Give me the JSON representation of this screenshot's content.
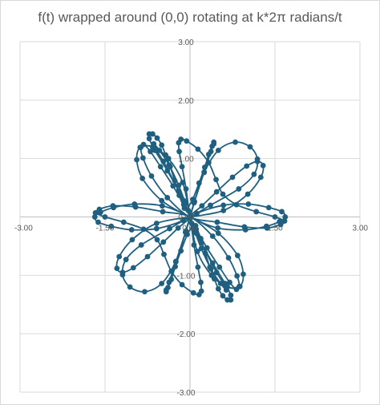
{
  "chart_data": {
    "type": "scatter",
    "title": "f(t) wrapped around (0,0) rotating at k*2π radians/t",
    "xlabel": "",
    "ylabel": "",
    "xlim": [
      -3,
      3
    ],
    "ylim": [
      -3,
      3
    ],
    "x_ticks": [
      -3,
      -1.5,
      0,
      1.5,
      3
    ],
    "y_ticks": [
      -3,
      -2,
      -1,
      0,
      1,
      2,
      3
    ],
    "x_tick_labels": [
      "-3.00",
      "-1.50",
      "0.00",
      "1.50",
      "3.00"
    ],
    "y_tick_labels": [
      "-3.00",
      "-2.00",
      "-1.00",
      "0.00",
      "1.00",
      "2.00",
      "3.00"
    ],
    "grid": true,
    "smooth_line": true,
    "legend": "none",
    "series": [
      {
        "color": "#1f5f7f",
        "points": [
          [
            0.0,
            0.0
          ],
          [
            0.59,
            0.11
          ],
          [
            1.02,
            0.39
          ],
          [
            1.25,
            0.68
          ],
          [
            1.29,
            0.88
          ],
          [
            1.19,
            0.95
          ],
          [
            1.0,
            0.87
          ],
          [
            0.75,
            0.68
          ],
          [
            0.47,
            0.43
          ],
          [
            0.21,
            0.19
          ],
          [
            0.0,
            0.0
          ],
          [
            0.1,
            -0.15
          ],
          [
            0.19,
            -0.37
          ],
          [
            0.27,
            -0.62
          ],
          [
            0.35,
            -0.86
          ],
          [
            0.43,
            -1.06
          ],
          [
            0.5,
            -1.23
          ],
          [
            0.58,
            -1.35
          ],
          [
            0.66,
            -1.42
          ],
          [
            0.72,
            -1.42
          ],
          [
            0.72,
            -1.34
          ],
          [
            0.62,
            -1.14
          ],
          [
            0.4,
            -0.79
          ],
          [
            0.11,
            -0.28
          ],
          [
            -0.03,
            0.11
          ],
          [
            0.05,
            0.3
          ],
          [
            0.16,
            0.58
          ],
          [
            0.26,
            0.85
          ],
          [
            0.33,
            1.07
          ],
          [
            0.39,
            1.21
          ],
          [
            0.42,
            1.28
          ],
          [
            0.42,
            1.25
          ],
          [
            0.37,
            1.12
          ],
          [
            0.25,
            0.77
          ],
          [
            0.08,
            0.26
          ],
          [
            -0.07,
            -0.24
          ],
          [
            -0.25,
            -0.76
          ],
          [
            -0.5,
            -1.14
          ],
          [
            -0.8,
            -1.28
          ],
          [
            -1.06,
            -1.2
          ],
          [
            -1.19,
            -0.99
          ],
          [
            -1.13,
            -0.73
          ],
          [
            -0.86,
            -0.48
          ],
          [
            -0.36,
            -0.2
          ],
          [
            0.12,
            0.06
          ],
          [
            0.59,
            0.2
          ],
          [
            1.03,
            0.22
          ],
          [
            1.39,
            0.16
          ],
          [
            1.62,
            0.09
          ],
          [
            1.68,
            0.0
          ],
          [
            1.58,
            -0.08
          ],
          [
            1.35,
            -0.16
          ],
          [
            0.98,
            -0.22
          ],
          [
            0.49,
            -0.19
          ],
          [
            0.0,
            0.0
          ],
          [
            -0.5,
            0.28
          ],
          [
            -0.84,
            0.66
          ],
          [
            -0.94,
            0.98
          ],
          [
            -0.88,
            1.19
          ],
          [
            -0.66,
            1.2
          ],
          [
            -0.38,
            1.0
          ],
          [
            -0.13,
            0.59
          ],
          [
            0.0,
            0.0
          ],
          [
            0.07,
            -0.48
          ],
          [
            0.14,
            -0.86
          ],
          [
            0.19,
            -1.12
          ],
          [
            0.2,
            -1.27
          ],
          [
            0.16,
            -1.33
          ],
          [
            0.06,
            -1.3
          ],
          [
            -0.14,
            -1.16
          ],
          [
            -0.33,
            -0.93
          ],
          [
            -0.46,
            -0.64
          ],
          [
            -0.58,
            -0.39
          ],
          [
            -0.82,
            -0.21
          ],
          [
            -1.17,
            -0.09
          ],
          [
            -1.5,
            0.0
          ],
          [
            -1.67,
            0.07
          ],
          [
            -1.6,
            0.13
          ],
          [
            -1.36,
            0.19
          ],
          [
            -0.96,
            0.17
          ],
          [
            -0.48,
            0.09
          ],
          [
            0.0,
            0.0
          ],
          [
            0.4,
            -0.33
          ],
          [
            0.68,
            -0.7
          ],
          [
            0.83,
            -1.01
          ],
          [
            0.87,
            -1.19
          ],
          [
            0.82,
            -1.24
          ],
          [
            0.7,
            -1.12
          ],
          [
            0.52,
            -0.86
          ],
          [
            0.3,
            -0.53
          ],
          [
            0.11,
            -0.21
          ],
          [
            0.0,
            0.0
          ],
          [
            -0.08,
            0.23
          ],
          [
            -0.2,
            0.54
          ],
          [
            -0.37,
            0.89
          ],
          [
            -0.54,
            1.14
          ],
          [
            -0.64,
            1.25
          ],
          [
            -0.63,
            1.19
          ],
          [
            -0.47,
            0.95
          ],
          [
            -0.2,
            0.44
          ],
          [
            0.0,
            0.0
          ],
          [
            0.2,
            -0.44
          ],
          [
            0.47,
            -0.95
          ],
          [
            0.63,
            -1.19
          ],
          [
            0.64,
            -1.25
          ],
          [
            0.54,
            -1.14
          ],
          [
            0.37,
            -0.89
          ],
          [
            0.2,
            -0.54
          ],
          [
            0.08,
            -0.23
          ],
          [
            0.0,
            0.0
          ],
          [
            -0.11,
            0.21
          ],
          [
            -0.3,
            0.53
          ],
          [
            -0.52,
            0.86
          ],
          [
            -0.7,
            1.12
          ],
          [
            -0.82,
            1.24
          ],
          [
            -0.87,
            1.19
          ],
          [
            -0.83,
            1.01
          ],
          [
            -0.68,
            0.7
          ],
          [
            -0.4,
            0.33
          ],
          [
            0.0,
            0.0
          ],
          [
            0.48,
            -0.09
          ],
          [
            0.96,
            -0.17
          ],
          [
            1.36,
            -0.19
          ],
          [
            1.6,
            -0.13
          ],
          [
            1.67,
            -0.07
          ],
          [
            1.5,
            0.0
          ],
          [
            1.17,
            0.09
          ],
          [
            0.82,
            0.21
          ],
          [
            0.58,
            0.39
          ],
          [
            0.46,
            0.64
          ],
          [
            0.33,
            0.93
          ],
          [
            0.14,
            1.16
          ],
          [
            -0.06,
            1.3
          ],
          [
            -0.16,
            1.33
          ],
          [
            -0.2,
            1.27
          ],
          [
            -0.19,
            1.12
          ],
          [
            -0.14,
            0.86
          ],
          [
            -0.07,
            0.48
          ],
          [
            0.0,
            0.0
          ],
          [
            0.13,
            -0.59
          ],
          [
            0.38,
            -1.0
          ],
          [
            0.66,
            -1.2
          ],
          [
            0.88,
            -1.19
          ],
          [
            0.94,
            -0.98
          ],
          [
            0.84,
            -0.66
          ],
          [
            0.5,
            -0.28
          ],
          [
            0.0,
            0.0
          ],
          [
            -0.49,
            0.19
          ],
          [
            -0.98,
            0.22
          ],
          [
            -1.35,
            0.16
          ],
          [
            -1.58,
            0.08
          ],
          [
            -1.68,
            0.0
          ],
          [
            -1.62,
            -0.09
          ],
          [
            -1.39,
            -0.16
          ],
          [
            -1.03,
            -0.22
          ],
          [
            -0.59,
            -0.2
          ],
          [
            -0.12,
            -0.06
          ],
          [
            0.36,
            0.2
          ],
          [
            0.86,
            0.48
          ],
          [
            1.13,
            0.73
          ],
          [
            1.19,
            0.99
          ],
          [
            1.06,
            1.2
          ],
          [
            0.8,
            1.28
          ],
          [
            0.5,
            1.14
          ],
          [
            0.25,
            0.76
          ],
          [
            0.07,
            0.24
          ],
          [
            -0.08,
            -0.26
          ],
          [
            -0.25,
            -0.77
          ],
          [
            -0.37,
            -1.12
          ],
          [
            -0.42,
            -1.25
          ],
          [
            -0.42,
            -1.28
          ],
          [
            -0.39,
            -1.21
          ],
          [
            -0.33,
            -1.07
          ],
          [
            -0.26,
            -0.85
          ],
          [
            -0.16,
            -0.58
          ],
          [
            -0.05,
            -0.3
          ],
          [
            0.03,
            -0.11
          ],
          [
            -0.11,
            0.28
          ],
          [
            -0.4,
            0.79
          ],
          [
            -0.62,
            1.14
          ],
          [
            -0.72,
            1.34
          ],
          [
            -0.72,
            1.42
          ],
          [
            -0.66,
            1.42
          ],
          [
            -0.58,
            1.35
          ],
          [
            -0.5,
            1.23
          ],
          [
            -0.43,
            1.06
          ],
          [
            -0.35,
            0.86
          ],
          [
            -0.27,
            0.62
          ],
          [
            -0.19,
            0.37
          ],
          [
            -0.1,
            0.15
          ],
          [
            0.0,
            0.0
          ],
          [
            -0.21,
            -0.19
          ],
          [
            -0.47,
            -0.43
          ],
          [
            -0.75,
            -0.68
          ],
          [
            -1.0,
            -0.87
          ],
          [
            -1.19,
            -0.95
          ],
          [
            -1.29,
            -0.88
          ],
          [
            -1.25,
            -0.68
          ],
          [
            -1.02,
            -0.39
          ],
          [
            -0.59,
            -0.11
          ],
          [
            0.0,
            0.0
          ]
        ]
      }
    ]
  }
}
